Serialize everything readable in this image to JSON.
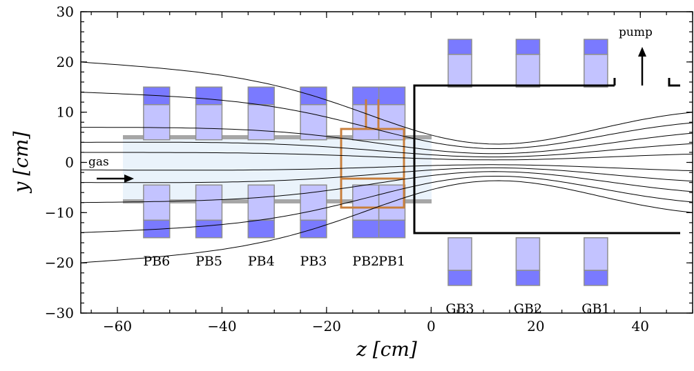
{
  "colors": {
    "magnet_light": "#c3c3ff",
    "magnet_dark": "#7a7aff",
    "magnet_edge": "#8e8e8e",
    "gas_fill": "#eaf3fb",
    "tube_wall": "#a6a6a6",
    "cell": "#c87f3c",
    "chamber": "#000000",
    "field_line": "#000000"
  },
  "axes": {
    "xlabel": "z [cm]",
    "ylabel": "y [cm]",
    "xlim": [
      -67,
      50
    ],
    "ylim": [
      -30,
      30
    ],
    "xticks": [
      -60,
      -40,
      -20,
      0,
      20,
      40
    ],
    "xtick_labels": [
      "−60",
      "−40",
      "−20",
      "0",
      "20",
      "40"
    ],
    "yticks": [
      -30,
      -20,
      -10,
      0,
      10,
      20,
      30
    ],
    "ytick_labels": [
      "−30",
      "−20",
      "−10",
      "0",
      "10",
      "20",
      "30"
    ]
  },
  "annotations": {
    "gas": "gas",
    "pump": "pump"
  },
  "coils": [
    {
      "label": "PB6",
      "z_center": -52.5,
      "width": 5,
      "side": "inner"
    },
    {
      "label": "PB5",
      "z_center": -42.5,
      "width": 5,
      "side": "inner"
    },
    {
      "label": "PB4",
      "z_center": -32.5,
      "width": 5,
      "side": "inner"
    },
    {
      "label": "PB3",
      "z_center": -22.5,
      "width": 5,
      "side": "inner"
    },
    {
      "label": "PB2",
      "z_center": -12.5,
      "width": 5,
      "side": "inner"
    },
    {
      "label": "PB1",
      "z_center": -7.5,
      "width": 5,
      "side": "inner",
      "offset_units": 0
    },
    {
      "label": "GB3",
      "z_center": 5.5,
      "width": 4.5,
      "side": "outer"
    },
    {
      "label": "GB2",
      "z_center": 18.5,
      "width": 4.5,
      "side": "outer"
    },
    {
      "label": "GB1",
      "z_center": 31.5,
      "width": 4.5,
      "side": "outer"
    }
  ],
  "field_lines": [
    {
      "start_y": 20,
      "end_y": 12
    },
    {
      "start_y": 14,
      "end_y": 9.5
    },
    {
      "start_y": 7,
      "end_y": 7
    },
    {
      "start_y": 4,
      "end_y": 4.5
    },
    {
      "start_y": 2,
      "end_y": 2
    },
    {
      "start_y": -1.5,
      "end_y": -2
    },
    {
      "start_y": -4,
      "end_y": -4.5
    },
    {
      "start_y": -8,
      "end_y": -7
    },
    {
      "start_y": -14,
      "end_y": -9.5
    },
    {
      "start_y": -20,
      "end_y": -12
    }
  ]
}
